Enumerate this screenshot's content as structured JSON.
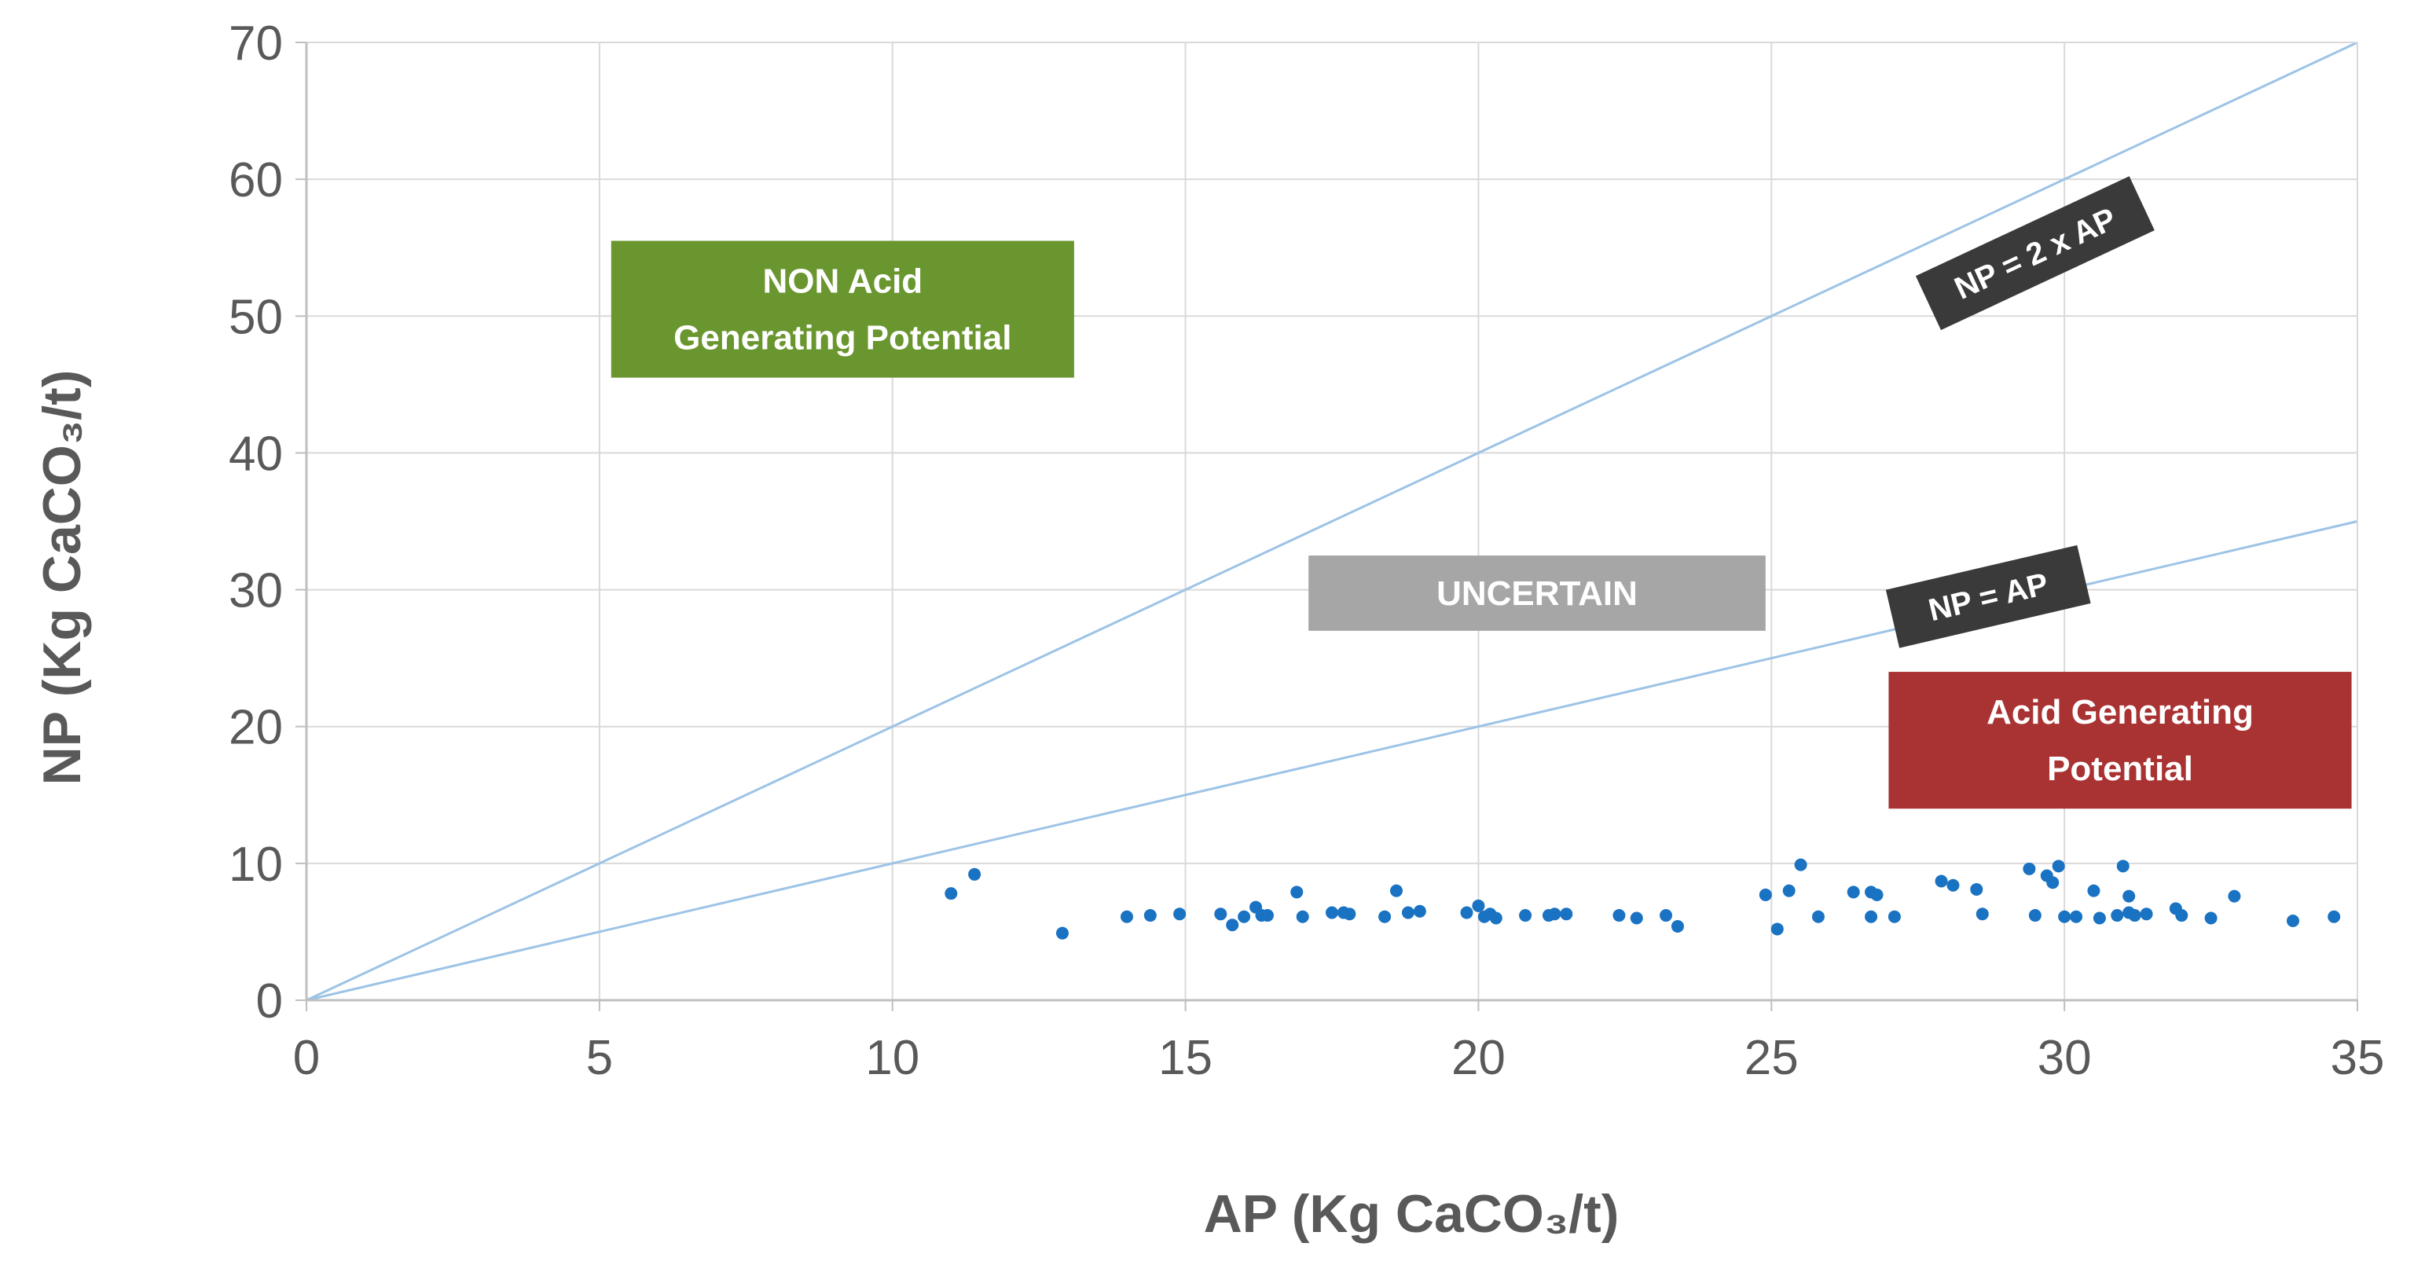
{
  "chart_data": {
    "type": "scatter",
    "title": "",
    "xlabel": "AP (Kg CaCO₃/t)",
    "ylabel": "NP (Kg CaCO₃/t)",
    "xlim": [
      0,
      35
    ],
    "ylim": [
      0,
      70
    ],
    "xticks": [
      0,
      5,
      10,
      15,
      20,
      25,
      30,
      35
    ],
    "yticks": [
      0,
      10,
      20,
      30,
      40,
      50,
      60,
      70
    ],
    "grid": true,
    "lines": [
      {
        "name": "NP = 2 x AP",
        "label": "NP = 2 x AP",
        "x": [
          0,
          35
        ],
        "y": [
          0,
          70
        ],
        "color": "#9dc3e6"
      },
      {
        "name": "NP = AP",
        "label": "NP = AP",
        "x": [
          0,
          35
        ],
        "y": [
          0,
          35
        ],
        "color": "#9dc3e6"
      }
    ],
    "regions": [
      {
        "name": "non-acid",
        "lines": [
          "NON Acid",
          "Generating Potential"
        ],
        "color": "#6a962f",
        "x0": 5.2,
        "x1": 13.1,
        "y0": 45.5,
        "y1": 55.5
      },
      {
        "name": "uncertain",
        "lines": [
          "UNCERTAIN"
        ],
        "color": "#a6a6a6",
        "x0": 17.1,
        "x1": 24.9,
        "y0": 27.0,
        "y1": 32.5
      },
      {
        "name": "acid",
        "lines": [
          "Acid Generating",
          "Potential"
        ],
        "color": "#a93232",
        "x0": 27.0,
        "x1": 34.9,
        "y0": 14.0,
        "y1": 24.0
      }
    ],
    "series": [
      {
        "name": "samples",
        "color": "#1a72c2",
        "points": [
          [
            11.0,
            7.8
          ],
          [
            11.4,
            9.2
          ],
          [
            12.9,
            4.9
          ],
          [
            14.0,
            6.1
          ],
          [
            14.4,
            6.2
          ],
          [
            14.9,
            6.3
          ],
          [
            15.6,
            6.3
          ],
          [
            15.8,
            5.5
          ],
          [
            16.0,
            6.1
          ],
          [
            16.2,
            6.8
          ],
          [
            16.3,
            6.2
          ],
          [
            16.4,
            6.2
          ],
          [
            16.9,
            7.9
          ],
          [
            17.0,
            6.1
          ],
          [
            17.5,
            6.4
          ],
          [
            17.7,
            6.4
          ],
          [
            17.8,
            6.3
          ],
          [
            18.4,
            6.1
          ],
          [
            18.6,
            8.0
          ],
          [
            18.8,
            6.4
          ],
          [
            19.0,
            6.5
          ],
          [
            19.8,
            6.4
          ],
          [
            20.0,
            6.9
          ],
          [
            20.1,
            6.1
          ],
          [
            20.2,
            6.3
          ],
          [
            20.3,
            6.0
          ],
          [
            20.8,
            6.2
          ],
          [
            21.2,
            6.2
          ],
          [
            21.3,
            6.3
          ],
          [
            21.5,
            6.3
          ],
          [
            22.4,
            6.2
          ],
          [
            22.7,
            6.0
          ],
          [
            23.2,
            6.2
          ],
          [
            23.4,
            5.4
          ],
          [
            24.9,
            7.7
          ],
          [
            25.1,
            5.2
          ],
          [
            25.3,
            8.0
          ],
          [
            25.5,
            9.9
          ],
          [
            25.8,
            6.1
          ],
          [
            26.4,
            7.9
          ],
          [
            26.7,
            7.9
          ],
          [
            26.7,
            6.1
          ],
          [
            26.8,
            7.7
          ],
          [
            27.1,
            6.1
          ],
          [
            27.9,
            8.7
          ],
          [
            28.1,
            8.4
          ],
          [
            28.5,
            8.1
          ],
          [
            28.6,
            6.3
          ],
          [
            29.4,
            9.6
          ],
          [
            29.5,
            6.2
          ],
          [
            29.7,
            9.1
          ],
          [
            29.8,
            8.6
          ],
          [
            29.9,
            9.8
          ],
          [
            30.0,
            6.1
          ],
          [
            30.2,
            6.1
          ],
          [
            30.5,
            8.0
          ],
          [
            30.6,
            6.0
          ],
          [
            30.9,
            6.2
          ],
          [
            31.0,
            9.8
          ],
          [
            31.1,
            6.4
          ],
          [
            31.1,
            7.6
          ],
          [
            31.2,
            6.2
          ],
          [
            31.4,
            6.3
          ],
          [
            31.9,
            6.7
          ],
          [
            32.0,
            6.2
          ],
          [
            32.5,
            6.0
          ],
          [
            32.9,
            7.6
          ],
          [
            33.9,
            5.8
          ],
          [
            34.6,
            6.1
          ]
        ]
      }
    ]
  }
}
